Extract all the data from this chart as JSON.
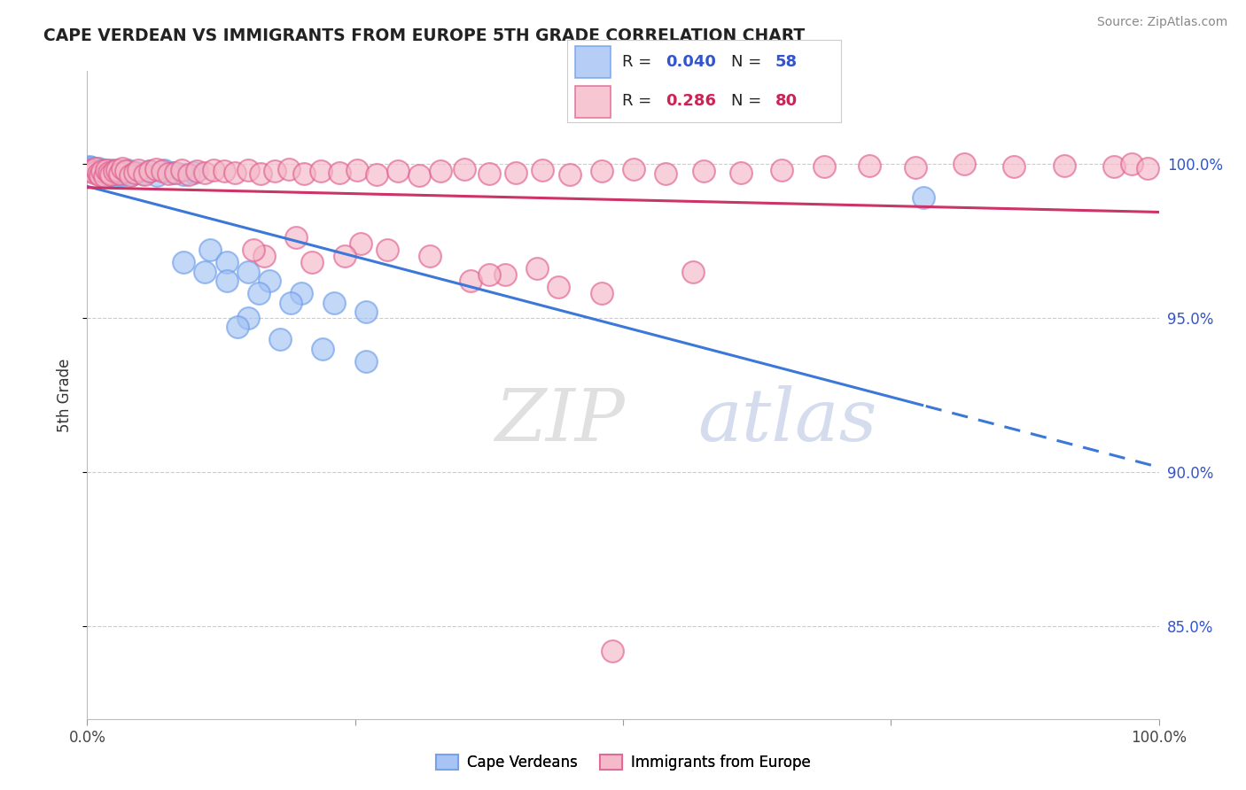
{
  "title": "CAPE VERDEAN VS IMMIGRANTS FROM EUROPE 5TH GRADE CORRELATION CHART",
  "source": "Source: ZipAtlas.com",
  "ylabel": "5th Grade",
  "blue_R": 0.04,
  "blue_N": 58,
  "pink_R": 0.286,
  "pink_N": 80,
  "blue_face_color": "#a4c2f4",
  "blue_edge_color": "#6d9eeb",
  "pink_face_color": "#f4b8c8",
  "pink_edge_color": "#e06090",
  "blue_line_color": "#3c78d8",
  "pink_line_color": "#cc3366",
  "ytick_labels": [
    "100.0%",
    "95.0%",
    "90.0%",
    "85.0%"
  ],
  "ytick_values": [
    1.0,
    0.95,
    0.9,
    0.85
  ],
  "ymin": 0.82,
  "ymax": 1.03,
  "xmin": 0.0,
  "xmax": 1.0,
  "blue_points_x": [
    0.002,
    0.003,
    0.004,
    0.005,
    0.006,
    0.007,
    0.008,
    0.009,
    0.01,
    0.011,
    0.012,
    0.013,
    0.014,
    0.015,
    0.016,
    0.017,
    0.018,
    0.019,
    0.02,
    0.021,
    0.022,
    0.023,
    0.024,
    0.025,
    0.026,
    0.027,
    0.028,
    0.03,
    0.032,
    0.035,
    0.038,
    0.042,
    0.046,
    0.052,
    0.058,
    0.065,
    0.072,
    0.08,
    0.09,
    0.1,
    0.115,
    0.13,
    0.15,
    0.17,
    0.2,
    0.23,
    0.26,
    0.09,
    0.11,
    0.13,
    0.16,
    0.19,
    0.15,
    0.14,
    0.18,
    0.22,
    0.26,
    0.78
  ],
  "blue_points_y": [
    0.999,
    0.9985,
    0.9988,
    0.998,
    0.9975,
    0.9982,
    0.9978,
    0.997,
    0.9985,
    0.9972,
    0.9968,
    0.9975,
    0.998,
    0.9965,
    0.997,
    0.9978,
    0.996,
    0.9972,
    0.9968,
    0.9975,
    0.9962,
    0.9978,
    0.997,
    0.9965,
    0.9972,
    0.996,
    0.9968,
    0.9975,
    0.9962,
    0.997,
    0.9978,
    0.9965,
    0.9972,
    0.9968,
    0.9975,
    0.9962,
    0.9978,
    0.997,
    0.9965,
    0.9972,
    0.972,
    0.968,
    0.965,
    0.962,
    0.958,
    0.955,
    0.952,
    0.968,
    0.965,
    0.962,
    0.958,
    0.955,
    0.95,
    0.947,
    0.943,
    0.94,
    0.936,
    0.989
  ],
  "pink_points_x": [
    0.002,
    0.004,
    0.006,
    0.008,
    0.01,
    0.012,
    0.014,
    0.016,
    0.018,
    0.02,
    0.022,
    0.025,
    0.028,
    0.03,
    0.033,
    0.036,
    0.04,
    0.044,
    0.048,
    0.053,
    0.058,
    0.064,
    0.07,
    0.076,
    0.082,
    0.088,
    0.095,
    0.102,
    0.11,
    0.118,
    0.128,
    0.138,
    0.15,
    0.162,
    0.175,
    0.188,
    0.202,
    0.218,
    0.235,
    0.252,
    0.27,
    0.29,
    0.31,
    0.33,
    0.352,
    0.375,
    0.4,
    0.425,
    0.45,
    0.48,
    0.51,
    0.54,
    0.575,
    0.61,
    0.648,
    0.688,
    0.73,
    0.773,
    0.818,
    0.865,
    0.912,
    0.958,
    0.975,
    0.99,
    0.358,
    0.21,
    0.165,
    0.48,
    0.39,
    0.42,
    0.28,
    0.32,
    0.255,
    0.195,
    0.44,
    0.375,
    0.155,
    0.24,
    0.565,
    0.49
  ],
  "pink_points_y": [
    0.998,
    0.9975,
    0.9972,
    0.9985,
    0.9968,
    0.9962,
    0.9975,
    0.996,
    0.9978,
    0.9972,
    0.9965,
    0.9975,
    0.998,
    0.9968,
    0.9985,
    0.9975,
    0.9962,
    0.9972,
    0.9978,
    0.9965,
    0.9975,
    0.9982,
    0.9975,
    0.9968,
    0.9972,
    0.9978,
    0.9965,
    0.9975,
    0.9972,
    0.9978,
    0.9975,
    0.9972,
    0.9978,
    0.9968,
    0.9975,
    0.9982,
    0.9968,
    0.9975,
    0.9972,
    0.9978,
    0.9965,
    0.9975,
    0.9962,
    0.9975,
    0.9982,
    0.9968,
    0.9972,
    0.9978,
    0.9965,
    0.9975,
    0.9982,
    0.9968,
    0.9975,
    0.9972,
    0.9978,
    0.9992,
    0.9995,
    0.9988,
    0.9998,
    0.999,
    0.9995,
    0.9992,
    0.9998,
    0.9985,
    0.962,
    0.968,
    0.97,
    0.958,
    0.964,
    0.966,
    0.972,
    0.97,
    0.974,
    0.976,
    0.96,
    0.964,
    0.972,
    0.97,
    0.965,
    0.842
  ]
}
